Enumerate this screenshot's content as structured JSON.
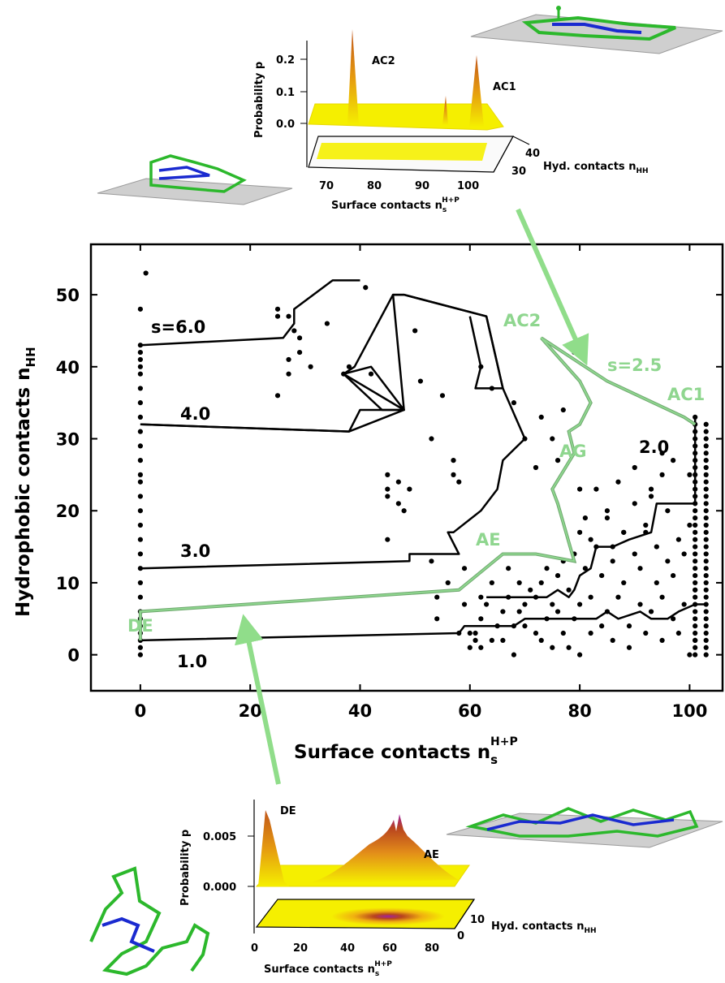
{
  "chart_data": [
    {
      "type": "scatter",
      "xlabel": "Surface contacts",
      "xlabel_symbol": "n",
      "xlabel_sub": "s",
      "xlabel_sup": "H+P",
      "ylabel": "Hydrophobic contacts",
      "ylabel_symbol": "n",
      "ylabel_sub": "HH",
      "xlim": [
        -9,
        106
      ],
      "ylim": [
        -5,
        57
      ],
      "xticks": [
        "0",
        "20",
        "40",
        "60",
        "80",
        "100"
      ],
      "yticks": [
        "0",
        "10",
        "20",
        "30",
        "40",
        "50"
      ],
      "grid": false,
      "colors": {
        "dots": "#000000",
        "boundary": "#000000",
        "boundary_s25": "#8fd68f",
        "arrow": "#90dd8a"
      },
      "points": [
        [
          0,
          0
        ],
        [
          0,
          1
        ],
        [
          0,
          2
        ],
        [
          0,
          3
        ],
        [
          0,
          4
        ],
        [
          0,
          5
        ],
        [
          0,
          6
        ],
        [
          0,
          8
        ],
        [
          0,
          10
        ],
        [
          0,
          12
        ],
        [
          0,
          14
        ],
        [
          0,
          16
        ],
        [
          0,
          18
        ],
        [
          0,
          20
        ],
        [
          0,
          22
        ],
        [
          0,
          24
        ],
        [
          0,
          25
        ],
        [
          0,
          27
        ],
        [
          0,
          29
        ],
        [
          0,
          31
        ],
        [
          0,
          33
        ],
        [
          0,
          35
        ],
        [
          0,
          37
        ],
        [
          0,
          39
        ],
        [
          0,
          40
        ],
        [
          0,
          41
        ],
        [
          0,
          42
        ],
        [
          0,
          43
        ],
        [
          0,
          48
        ],
        [
          1,
          53
        ],
        [
          25,
          36
        ],
        [
          25,
          47
        ],
        [
          25,
          48
        ],
        [
          27,
          39
        ],
        [
          27,
          41
        ],
        [
          27,
          47
        ],
        [
          28,
          45
        ],
        [
          29,
          42
        ],
        [
          29,
          44
        ],
        [
          31,
          40
        ],
        [
          34,
          46
        ],
        [
          37,
          39
        ],
        [
          38,
          40
        ],
        [
          41,
          51
        ],
        [
          42,
          39
        ],
        [
          45,
          16
        ],
        [
          45,
          22
        ],
        [
          45,
          23
        ],
        [
          45,
          25
        ],
        [
          47,
          21
        ],
        [
          47,
          24
        ],
        [
          48,
          20
        ],
        [
          49,
          23
        ],
        [
          50,
          45
        ],
        [
          51,
          38
        ],
        [
          53,
          30
        ],
        [
          53,
          13
        ],
        [
          54,
          8
        ],
        [
          54,
          5
        ],
        [
          55,
          36
        ],
        [
          56,
          10
        ],
        [
          57,
          25
        ],
        [
          57,
          27
        ],
        [
          58,
          24
        ],
        [
          58,
          3
        ],
        [
          59,
          7
        ],
        [
          59,
          12
        ],
        [
          60,
          1
        ],
        [
          60,
          3
        ],
        [
          61,
          3
        ],
        [
          61,
          2
        ],
        [
          62,
          1
        ],
        [
          62,
          5
        ],
        [
          62,
          8
        ],
        [
          63,
          7
        ],
        [
          64,
          10
        ],
        [
          64,
          2
        ],
        [
          65,
          4
        ],
        [
          66,
          2
        ],
        [
          66,
          6
        ],
        [
          67,
          8
        ],
        [
          67,
          12
        ],
        [
          68,
          0
        ],
        [
          68,
          4
        ],
        [
          69,
          6
        ],
        [
          69,
          10
        ],
        [
          70,
          7
        ],
        [
          70,
          4
        ],
        [
          71,
          9
        ],
        [
          72,
          3
        ],
        [
          72,
          8
        ],
        [
          73,
          2
        ],
        [
          73,
          10
        ],
        [
          74,
          5
        ],
        [
          74,
          12
        ],
        [
          75,
          1
        ],
        [
          75,
          7
        ],
        [
          76,
          6
        ],
        [
          76,
          11
        ],
        [
          77,
          3
        ],
        [
          77,
          13
        ],
        [
          78,
          9
        ],
        [
          78,
          1
        ],
        [
          79,
          14
        ],
        [
          79,
          5
        ],
        [
          80,
          7
        ],
        [
          80,
          17
        ],
        [
          80,
          0
        ],
        [
          81,
          12
        ],
        [
          81,
          19
        ],
        [
          82,
          3
        ],
        [
          82,
          8
        ],
        [
          83,
          15
        ],
        [
          83,
          23
        ],
        [
          84,
          4
        ],
        [
          84,
          11
        ],
        [
          85,
          6
        ],
        [
          85,
          19
        ],
        [
          86,
          13
        ],
        [
          86,
          2
        ],
        [
          87,
          24
        ],
        [
          87,
          8
        ],
        [
          88,
          17
        ],
        [
          88,
          10
        ],
        [
          89,
          4
        ],
        [
          89,
          1
        ],
        [
          90,
          14
        ],
        [
          90,
          26
        ],
        [
          91,
          7
        ],
        [
          91,
          12
        ],
        [
          92,
          3
        ],
        [
          92,
          17
        ],
        [
          93,
          6
        ],
        [
          93,
          22
        ],
        [
          94,
          10
        ],
        [
          94,
          15
        ],
        [
          95,
          2
        ],
        [
          95,
          8
        ],
        [
          95,
          28
        ],
        [
          96,
          13
        ],
        [
          96,
          20
        ],
        [
          97,
          5
        ],
        [
          97,
          11
        ],
        [
          98,
          3
        ],
        [
          98,
          16
        ],
        [
          99,
          7
        ],
        [
          99,
          14
        ],
        [
          100,
          0
        ],
        [
          100,
          18
        ],
        [
          100,
          25
        ],
        [
          101,
          2
        ],
        [
          101,
          9
        ],
        [
          62,
          40
        ],
        [
          64,
          37
        ],
        [
          68,
          35
        ],
        [
          70,
          30
        ],
        [
          72,
          26
        ],
        [
          73,
          33
        ],
        [
          75,
          30
        ],
        [
          76,
          27
        ],
        [
          77,
          34
        ],
        [
          79,
          42
        ],
        [
          80,
          23
        ],
        [
          82,
          16
        ],
        [
          85,
          20
        ],
        [
          86,
          15
        ],
        [
          88,
          17
        ],
        [
          90,
          21
        ],
        [
          92,
          18
        ],
        [
          93,
          23
        ],
        [
          95,
          25
        ],
        [
          97,
          27
        ]
      ],
      "dense_columns": [
        {
          "x": 101,
          "ymin": 0,
          "ymax": 33
        },
        {
          "x": 103,
          "ymin": 0,
          "ymax": 32
        }
      ],
      "series": [
        {
          "name": "1.0",
          "line": [
            [
              0,
              2
            ],
            [
              58,
              3
            ],
            [
              59,
              4
            ],
            [
              61,
              4
            ],
            [
              62,
              4
            ],
            [
              68,
              4
            ],
            [
              70,
              5
            ],
            [
              71,
              5
            ],
            [
              78,
              5
            ],
            [
              79,
              5
            ],
            [
              83,
              5
            ],
            [
              85,
              6
            ],
            [
              87,
              5
            ],
            [
              91,
              6
            ],
            [
              93,
              5
            ],
            [
              96,
              5
            ],
            [
              98,
              6
            ],
            [
              101,
              7
            ],
            [
              103,
              7
            ]
          ]
        },
        {
          "name": "2.0",
          "line": [
            [
              101,
              33
            ],
            [
              101,
              31
            ],
            [
              101,
              21
            ],
            [
              94,
              21
            ],
            [
              93,
              17
            ],
            [
              89,
              16
            ],
            [
              86,
              15
            ],
            [
              83,
              15
            ],
            [
              82,
              12
            ],
            [
              80,
              11
            ],
            [
              79,
              9
            ],
            [
              78,
              8
            ],
            [
              76,
              9
            ],
            [
              74,
              8
            ],
            [
              70,
              8
            ],
            [
              68,
              8
            ],
            [
              65,
              8
            ],
            [
              63,
              8
            ]
          ]
        },
        {
          "name": "3.0",
          "line": [
            [
              0,
              12
            ],
            [
              49,
              13
            ],
            [
              49,
              14
            ],
            [
              58,
              14
            ],
            [
              56,
              17
            ],
            [
              57,
              17
            ],
            [
              62,
              20
            ],
            [
              65,
              23
            ],
            [
              66,
              27
            ],
            [
              70,
              30
            ],
            [
              66,
              37
            ],
            [
              63,
              47
            ],
            [
              48,
              50
            ],
            [
              46,
              50
            ],
            [
              48,
              34
            ],
            [
              44,
              34
            ],
            [
              37,
              39
            ],
            [
              42,
              40
            ],
            [
              48,
              34
            ],
            [
              38,
              31
            ],
            [
              0,
              32
            ]
          ]
        },
        {
          "name": "4.0",
          "line": [
            [
              0,
              32
            ],
            [
              38,
              31
            ],
            [
              40,
              34
            ],
            [
              48,
              34
            ],
            [
              37,
              39
            ],
            [
              39,
              40
            ],
            [
              46,
              50
            ],
            [
              48,
              50
            ],
            [
              63,
              47
            ],
            [
              66,
              37
            ],
            [
              61,
              37
            ],
            [
              62,
              40
            ],
            [
              60,
              47
            ]
          ]
        },
        {
          "name": "s=6.0",
          "line": [
            [
              0,
              43
            ],
            [
              26,
              44
            ],
            [
              28,
              46
            ],
            [
              28,
              48
            ],
            [
              35,
              52
            ],
            [
              38,
              52
            ],
            [
              40,
              52
            ]
          ]
        },
        {
          "name": "s=2.5",
          "line": [
            [
              0,
              2
            ],
            [
              0,
              6
            ],
            [
              58,
              9
            ],
            [
              66,
              14
            ],
            [
              72,
              14
            ],
            [
              79,
              13
            ],
            [
              76,
              21
            ],
            [
              75,
              23
            ],
            [
              79,
              28
            ],
            [
              78,
              31
            ],
            [
              80,
              32
            ],
            [
              82,
              35
            ],
            [
              80,
              38
            ],
            [
              73,
              44
            ],
            [
              85,
              38
            ],
            [
              99,
              33
            ],
            [
              101,
              32
            ]
          ]
        }
      ],
      "annotations": [
        "s=6.0",
        "4.0",
        "3.0",
        "1.0",
        "2.0",
        "s=2.5",
        "AC2",
        "AC1",
        "AG",
        "AE",
        "DE"
      ]
    },
    {
      "type": "area",
      "inset": "top",
      "zlabel": "Probability p",
      "xlabel": "Surface contacts",
      "xlabel_symbol": "n",
      "xlabel_sub": "s",
      "xlabel_sup": "H+P",
      "ylabel": "Hyd. contacts",
      "ylabel_symbol": "n",
      "ylabel_sub": "HH",
      "zticks": [
        "0.0",
        "0.1",
        "0.2"
      ],
      "xticks": [
        "70",
        "80",
        "90",
        "100"
      ],
      "yticks": [
        "30",
        "40"
      ],
      "peaks": [
        {
          "label": "AC2",
          "x": 74,
          "p": 0.26
        },
        {
          "label": "AC1",
          "x": 100,
          "p": 0.19
        }
      ],
      "colors": {
        "base": "#f5ef00",
        "peak": "#d2691e"
      }
    },
    {
      "type": "area",
      "inset": "bottom",
      "zlabel": "Probability p",
      "xlabel": "Surface contacts",
      "xlabel_symbol": "n",
      "xlabel_sub": "s",
      "xlabel_sup": "H+P",
      "ylabel": "Hyd. contacts",
      "ylabel_symbol": "n",
      "ylabel_sub": "HH",
      "zticks": [
        "0.000",
        "0.005"
      ],
      "xticks": [
        "0",
        "20",
        "40",
        "60",
        "80"
      ],
      "yticks": [
        "0",
        "10"
      ],
      "peaks": [
        {
          "label": "DE",
          "x": 2,
          "p": 0.007
        },
        {
          "label": "AE",
          "x": 62,
          "p": 0.004
        }
      ],
      "colors": {
        "base": "#f5ef00",
        "peak": "#b8441e",
        "top": "#a020a0"
      }
    }
  ]
}
